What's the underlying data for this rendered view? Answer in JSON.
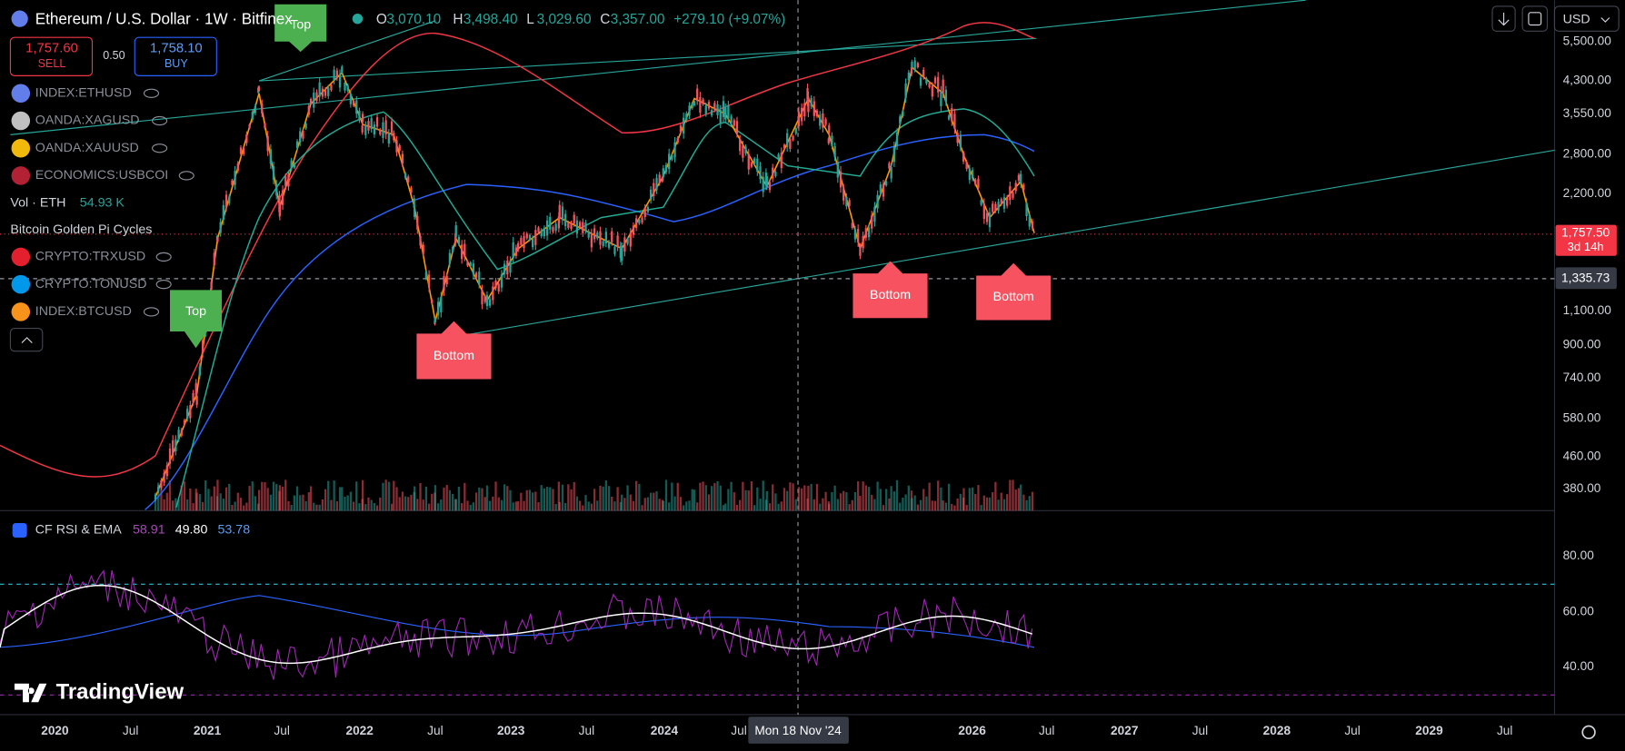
{
  "header": {
    "symbol": "Ethereum / U.S. Dollar · 1W · Bitfinex",
    "ohlc": [
      {
        "label": "O",
        "value": "3,070.10"
      },
      {
        "label": "H",
        "value": "3,498.40"
      },
      {
        "label": "L",
        "value": "3,029.60"
      },
      {
        "label": "C",
        "value": "3,357.00"
      }
    ],
    "change": "+279.10 (+9.07%)",
    "currency": "USD"
  },
  "trade": {
    "sell_price": "1,757.60",
    "sell_label": "SELL",
    "spread": "0.50",
    "buy_price": "1,758.10",
    "buy_label": "BUY"
  },
  "overlays": [
    "INDEX:ETHUSD",
    "OANDA:XAGUSD",
    "OANDA:XAUUSD",
    "ECONOMICS:USBCOI"
  ],
  "volume": {
    "label": "Vol · ETH",
    "value": "54.93 K"
  },
  "indicator": "Bitcoin Golden Pi Cycles",
  "overlays_more": [
    "CRYPTO:TRXUSD",
    "CRYPTO:TONUSD",
    "INDEX:BTCUSD"
  ],
  "price_axis": [
    "5,500.00",
    "4,300.00",
    "3,550.00",
    "2,800.00",
    "2,200.00",
    "1,100.00",
    "900.00",
    "740.00",
    "580.00",
    "460.00",
    "380.00"
  ],
  "last_price": {
    "price": "1,757.50",
    "countdown": "3d 14h"
  },
  "crosshair": {
    "price": "1,335.73",
    "date": "Mon 18 Nov '24"
  },
  "annotations": [
    "Top",
    "Top",
    "Bottom",
    "Bottom",
    "Bottom"
  ],
  "rsi": {
    "title": "CF RSI & EMA",
    "values": [
      "58.91",
      "49.80",
      "53.78"
    ],
    "axis": [
      "80.00",
      "60.00",
      "40.00"
    ]
  },
  "time_axis": [
    "2020",
    "Jul",
    "2021",
    "Jul",
    "2022",
    "Jul",
    "2023",
    "Jul",
    "2024",
    "Jul",
    "2026",
    "Jul",
    "2027",
    "Jul",
    "2028",
    "Jul",
    "2029",
    "Jul"
  ],
  "logo": "TradingView"
}
